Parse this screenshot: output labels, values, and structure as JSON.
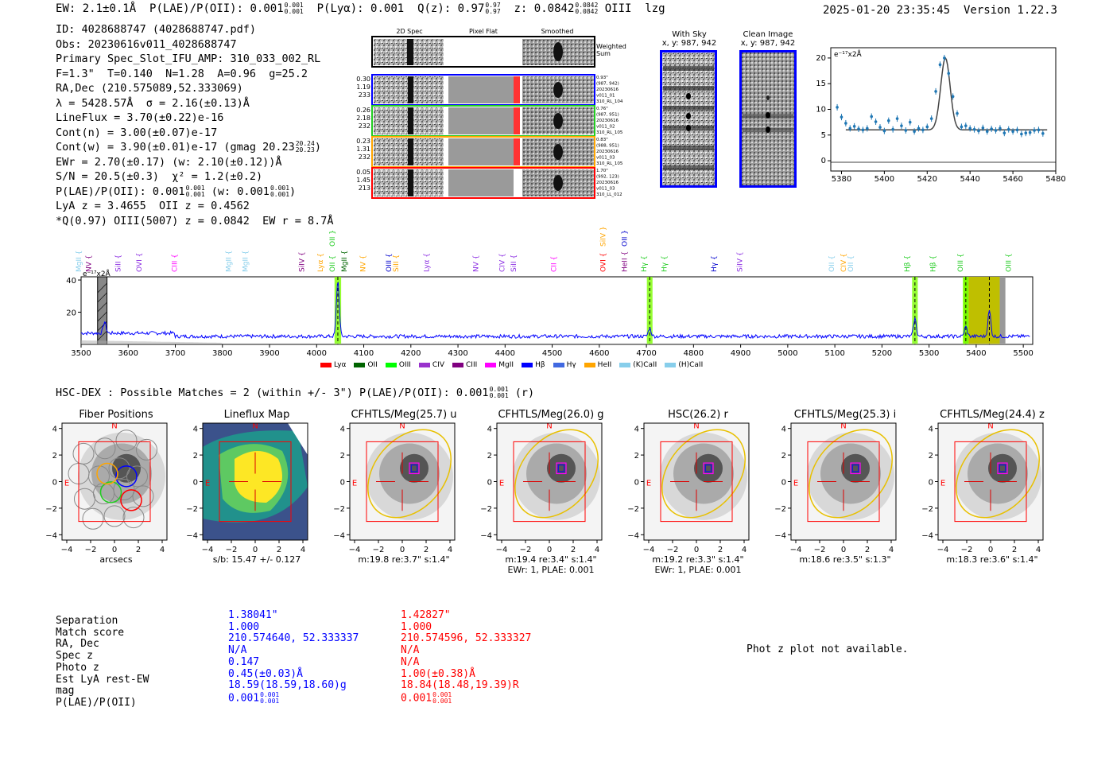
{
  "header": {
    "ew_label": "EW:",
    "ew_value": "2.1±0.1Å",
    "plae_label": "P(LAE)/P(OII):",
    "plae_value": "0.001",
    "plae_sup": "0.001",
    "plae_sub": "0.001",
    "plya_label": "P(Lyα):",
    "plya_value": "0.001",
    "qz_label": "Q(z):",
    "qz_value": "0.97",
    "qz_sup": "0.97",
    "qz_sub": "0.97",
    "z_label": "z:",
    "z_value": "0.0842",
    "z_sup": "0.0842",
    "z_sub": "0.0842",
    "line_name": "OIII",
    "flag": "lzg",
    "timestamp": "2025-01-20 23:35:45",
    "version": "Version 1.22.3"
  },
  "info": {
    "id": "ID: 4028688747 (4028688747.pdf)",
    "obs": "Obs: 20230616v011_4028688747",
    "primary": "Primary Spec_Slot_IFU_AMP: 310_033_002_RL",
    "params": "F=1.3\"  T=0.140  N=1.28  A=0.96  g=25.2",
    "radec": "RA,Dec (210.575089,52.333069)",
    "lambda": "λ = 5428.57Å  σ = 2.16(±0.13)Å",
    "lineflux": "LineFlux = 3.70(±0.22)e-16",
    "cont_n": "Cont(n) = 3.00(±0.07)e-17",
    "cont_w": "Cont(w) = 3.90(±0.01)e-17 (gmag 20.23",
    "cont_w_sup": "20.24",
    "cont_w_sub": "20.23",
    "cont_w_end": ")",
    "ewr": "EWr = 2.70(±0.17) (w: 2.10(±0.12))Å",
    "sn": "S/N = 20.5(±0.3)  χ² = 1.2(±0.2)",
    "plae": "P(LAE)/P(OII): 0.001",
    "plae_sup": "0.001",
    "plae_sub": "0.001",
    "plae_w": " (w: 0.001",
    "plae_w_sup": "0.001",
    "plae_w_sub": "0.001",
    "plae_end": ")",
    "lya": "LyA z = 3.4655  OII z = 0.4562",
    "q": "*Q(0.97) OIII(5007) z = 0.0842  EW r = 8.7Å"
  },
  "spec2d": {
    "col_2d": "2D Spec",
    "col_flat": "Pixel Flat",
    "col_smooth": "Smoothed",
    "weighted": "Weighted\nSum",
    "rows": [
      {
        "left": [
          "0.30",
          "1.19",
          "233"
        ],
        "right": [
          "0.93\"",
          "(987, 942)",
          "20230616",
          "v011_01",
          "310_RL_104"
        ],
        "color": "#0000ff"
      },
      {
        "left": [
          "0.26",
          "2.18",
          "232"
        ],
        "right": [
          "0.76\"",
          "(987, 951)",
          "20230616",
          "v011_02",
          "310_RL_105"
        ],
        "color": "#22cc22"
      },
      {
        "left": [
          "0.23",
          "1.31",
          "232"
        ],
        "right": [
          "0.83\"",
          "(988, 951)",
          "20230616",
          "v011_03",
          "310_RL_105"
        ],
        "color": "#ffa500"
      },
      {
        "left": [
          "0.05",
          "1.45",
          "213"
        ],
        "right": [
          "1.70\"",
          "(992, 123)",
          "20230616",
          "v011_03",
          "310_LL_012"
        ],
        "color": "#ff0000"
      }
    ]
  },
  "stamps": {
    "sky_title": "With Sky",
    "sky_coords": "x, y: 987, 942",
    "clean_title": "Clean Image",
    "clean_coords": "x, y: 987, 942"
  },
  "fit_plot": {
    "ylabel": "e⁻¹⁷x2Å",
    "xticks": [
      "5380",
      "5400",
      "5420",
      "5440",
      "5460",
      "5480"
    ],
    "yticks": [
      "0",
      "5",
      "10",
      "15",
      "20"
    ]
  },
  "chart_data": {
    "type": "line",
    "title": "",
    "xlabel": "",
    "ylabel": "e⁻¹⁷x2Å",
    "xlim": [
      3500,
      5520
    ],
    "ylim": [
      0,
      42
    ],
    "xticks": [
      3500,
      3600,
      3700,
      3800,
      3900,
      4000,
      4100,
      4200,
      4300,
      4400,
      4500,
      4600,
      4700,
      4800,
      4900,
      5000,
      5100,
      5200,
      5300,
      5400,
      5500
    ],
    "yticks": [
      20,
      40
    ],
    "emission_peaks": [
      {
        "x": 3550,
        "y": 12
      },
      {
        "x": 4045,
        "y": 40
      },
      {
        "x": 4707,
        "y": 10
      },
      {
        "x": 5270,
        "y": 16
      },
      {
        "x": 5378,
        "y": 11
      },
      {
        "x": 5428,
        "y": 21
      }
    ],
    "continuum": 5,
    "line_labels": [
      {
        "name": "MgII",
        "x": 3507,
        "color": "#87ceeb"
      },
      {
        "name": "NV",
        "x": 3528,
        "color": "#800080"
      },
      {
        "name": "SiII",
        "x": 3590,
        "color": "#8a2be2"
      },
      {
        "name": "OVI",
        "x": 3635,
        "color": "#8a2be2"
      },
      {
        "name": "CIII",
        "x": 3710,
        "color": "#ff00ff"
      },
      {
        "name": "MgII",
        "x": 3825,
        "color": "#87ceeb"
      },
      {
        "name": "MgII",
        "x": 3860,
        "color": "#87ceeb"
      },
      {
        "name": "SiIV",
        "x": 3980,
        "color": "#800080"
      },
      {
        "name": "Lyα",
        "x": 4020,
        "color": "#ffa500"
      },
      {
        "name": "OII",
        "x": 4045,
        "color": "#22cc22"
      },
      {
        "name": "MgII",
        "x": 4070,
        "color": "#006400"
      },
      {
        "name": "NV",
        "x": 4110,
        "color": "#ffa500"
      },
      {
        "name": "OIII",
        "x": 4165,
        "color": "#0000cd"
      },
      {
        "name": "SiII",
        "x": 4180,
        "color": "#ffa500"
      },
      {
        "name": "Lyα",
        "x": 4245,
        "color": "#8a2be2"
      },
      {
        "name": "NV",
        "x": 4350,
        "color": "#8a2be2"
      },
      {
        "name": "CIV",
        "x": 4405,
        "color": "#8a2be2"
      },
      {
        "name": "SiII",
        "x": 4430,
        "color": "#8a2be2"
      },
      {
        "name": "CII",
        "x": 4515,
        "color": "#ff00ff"
      },
      {
        "name": "OVI",
        "x": 4620,
        "color": "#ff0000"
      },
      {
        "name": "HeII",
        "x": 4665,
        "color": "#800080"
      },
      {
        "name": "Hγ",
        "x": 4707,
        "color": "#22cc22"
      },
      {
        "name": "Hγ",
        "x": 4750,
        "color": "#22cc22"
      },
      {
        "name": "Hγ",
        "x": 4855,
        "color": "#0000cd"
      },
      {
        "name": "SiIV",
        "x": 4910,
        "color": "#8a2be2"
      },
      {
        "name": "OII",
        "x": 5105,
        "color": "#87ceeb"
      },
      {
        "name": "CIV",
        "x": 5130,
        "color": "#ffa500"
      },
      {
        "name": "OII",
        "x": 5145,
        "color": "#87ceeb"
      },
      {
        "name": "Hβ",
        "x": 5265,
        "color": "#22cc22"
      },
      {
        "name": "Hβ",
        "x": 5320,
        "color": "#22cc22"
      },
      {
        "name": "OIII",
        "x": 5378,
        "color": "#22cc22"
      },
      {
        "name": "OIII",
        "x": 5480,
        "color": "#22cc22"
      }
    ],
    "top_labels": [
      {
        "name": "OII",
        "x": 4045,
        "color": "#22cc22"
      },
      {
        "name": "SiIV",
        "x": 4620,
        "color": "#ffa500"
      },
      {
        "name": "OII",
        "x": 4665,
        "color": "#0000cd"
      }
    ],
    "legend": [
      {
        "name": "Lyα",
        "color": "#ff0000"
      },
      {
        "name": "OII",
        "color": "#006400"
      },
      {
        "name": "OIII",
        "color": "#00ff00"
      },
      {
        "name": "CIV",
        "color": "#9932cc"
      },
      {
        "name": "CIII",
        "color": "#800080"
      },
      {
        "name": "MgII",
        "color": "#ff00ff"
      },
      {
        "name": "Hβ",
        "color": "#0000ff"
      },
      {
        "name": "Hγ",
        "color": "#4169e1"
      },
      {
        "name": "HeII",
        "color": "#ffa500"
      },
      {
        "name": "(K)CaII",
        "color": "#87ceeb"
      },
      {
        "name": "(H)CaII",
        "color": "#87ceeb"
      }
    ]
  },
  "hsc": {
    "title": "HSC-DEX : Possible Matches = 2 (within +/- 3\")  P(LAE)/P(OII): 0.001",
    "title_sup": "0.001",
    "title_sub": "0.001",
    "title_end": " (r)"
  },
  "cutouts": [
    {
      "title": "Fiber Positions",
      "cap1": "arcsecs",
      "cap2": ""
    },
    {
      "title": "Lineflux Map",
      "cap1": "s/b: 15.47 +/- 0.127",
      "cap2": ""
    },
    {
      "title": "CFHTLS/Meg(25.7) u",
      "cap1": "m:19.8  re:3.7\"  s:1.4\"",
      "cap2": ""
    },
    {
      "title": "CFHTLS/Meg(26.0) g",
      "cap1": "m:19.4  re:3.4\"  s:1.4\"",
      "cap2": "EWr: 1, PLAE: 0.001"
    },
    {
      "title": "HSC(26.2) r",
      "cap1": "m:19.2  re:3.3\"  s:1.4\"",
      "cap2": "EWr: 1, PLAE: 0.001"
    },
    {
      "title": "CFHTLS/Meg(25.3) i",
      "cap1": "m:18.6  re:3.5\"  s:1.3\"",
      "cap2": ""
    },
    {
      "title": "CFHTLS/Meg(24.4) z",
      "cap1": "m:18.3  re:3.6\"  s:1.4\"",
      "cap2": ""
    }
  ],
  "cutout_axes": {
    "ticks": [
      "-4",
      "-2",
      "0",
      "2",
      "4"
    ],
    "north": "N",
    "east": "E"
  },
  "matches": {
    "labels": [
      "Separation",
      "Match score",
      "RA, Dec",
      "Spec z",
      "Photo z",
      "Est LyA rest-EW",
      "mag",
      "P(LAE)/P(OII)"
    ],
    "a": [
      "1.38041\"",
      "1.000",
      "210.574640, 52.333337",
      "N/A",
      "0.147",
      "0.45(±0.03)Å",
      "18.59(18.59,18.60)g",
      "0.001"
    ],
    "a_sup": "0.001",
    "a_sub": "0.001",
    "b": [
      "1.42827\"",
      "1.000",
      "210.574596, 52.333327",
      "N/A",
      "N/A",
      "1.00(±0.38)Å",
      "18.84(18.48,19.39)R",
      "0.001"
    ],
    "b_sup": "0.001",
    "b_sub": "0.001"
  },
  "photz": "Phot z plot not available."
}
